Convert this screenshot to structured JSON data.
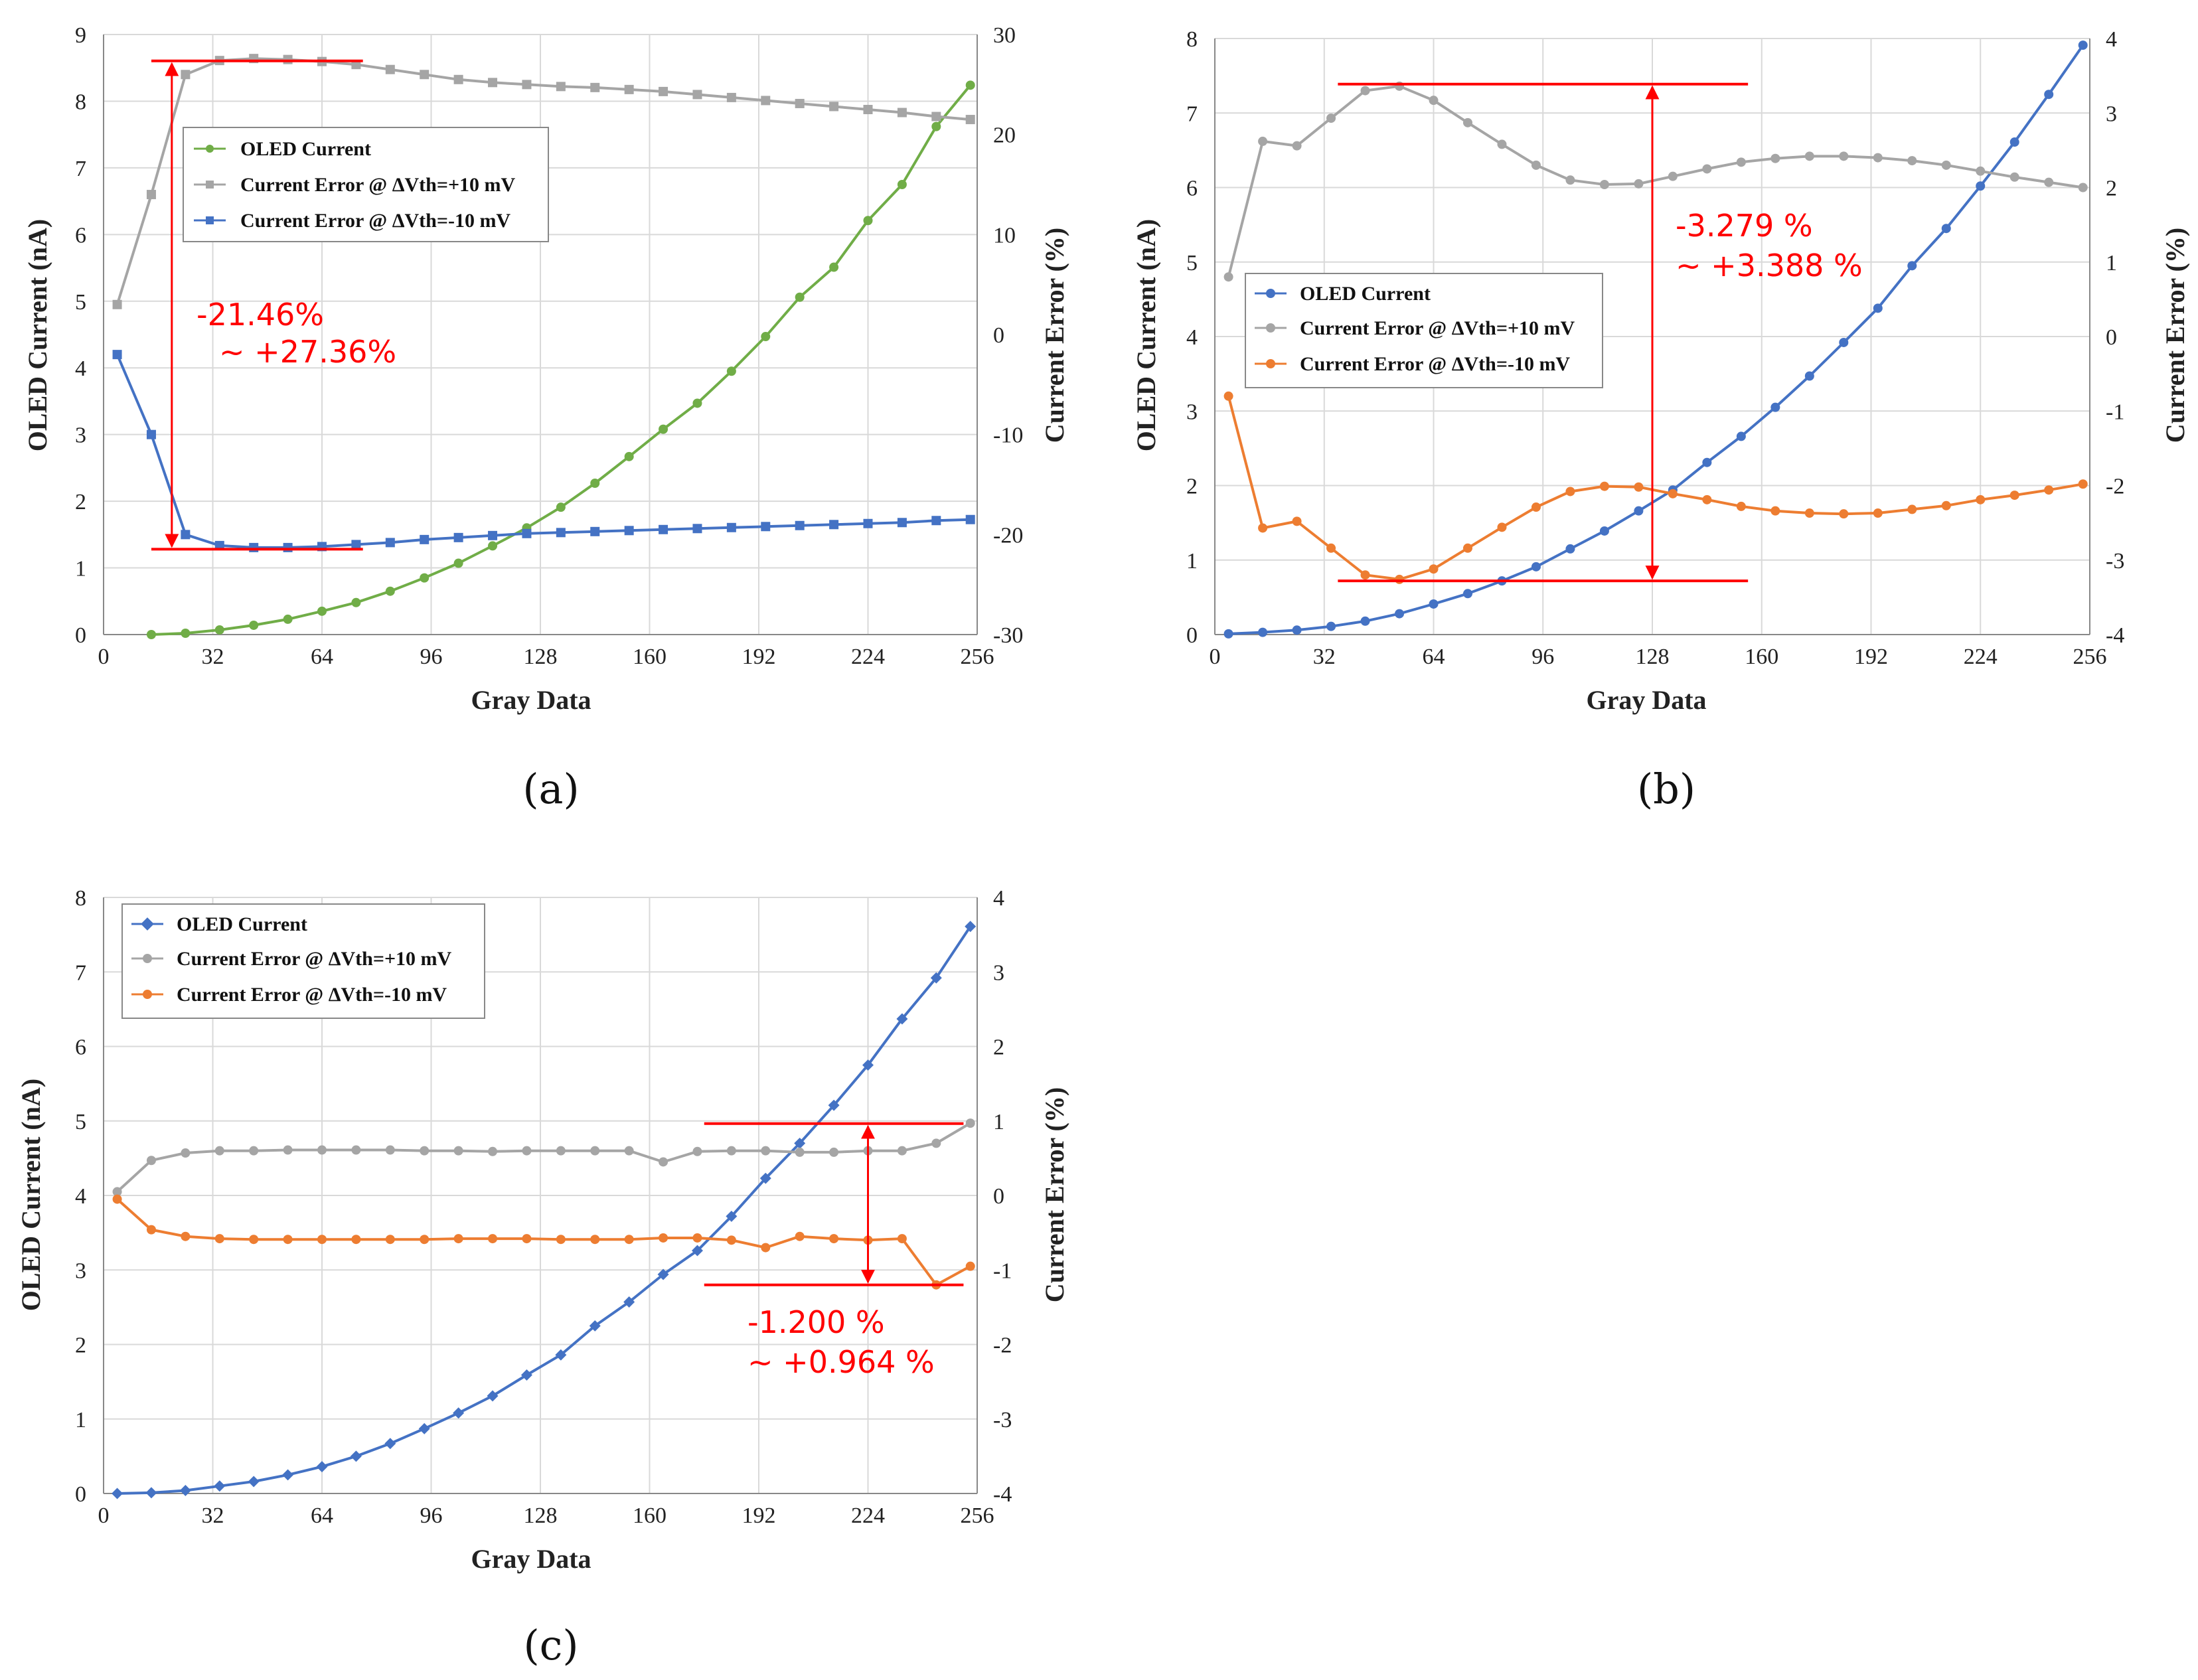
{
  "colors": {
    "green": "#70ad47",
    "gray": "#a5a5a5",
    "blue": "#4472c4",
    "orange": "#ed7d31",
    "red": "#ff0000",
    "grid": "#d9d9d9",
    "axis": "#888888"
  },
  "chart_data": [
    {
      "id": "a",
      "caption": "(a)",
      "type": "line",
      "xlabel": "Gray Data",
      "ylabel_left": "OLED Current (nA)",
      "ylabel_right": "Current Error (%)",
      "xticks": [
        0,
        32,
        64,
        96,
        128,
        160,
        192,
        224,
        256
      ],
      "xlim": [
        0,
        256
      ],
      "ylim_left": [
        0,
        9
      ],
      "yticks_left": [
        0,
        1,
        2,
        3,
        4,
        5,
        6,
        7,
        8,
        9
      ],
      "ylim_right": [
        -30,
        30
      ],
      "yticks_right": [
        -30,
        -20,
        -10,
        0,
        10,
        20,
        30
      ],
      "legend_position": "top-left",
      "legend": [
        "OLED Current",
        "Current Error @ ΔVth=+10 mV",
        "Current Error @ ΔVth=-10 mV"
      ],
      "annotation": {
        "line1": "-21.46%",
        "line2": "~ +27.36%"
      },
      "bracket": {
        "top": 27.36,
        "bottom": -21.46,
        "x_from": 14,
        "x_to": 76,
        "x_arrow": 20,
        "axis": "right"
      },
      "series": [
        {
          "name": "OLED Current",
          "axis": "left",
          "color": "green",
          "marker": "circle",
          "x": [
            14,
            24,
            34,
            44,
            54,
            64,
            74,
            84,
            94,
            104,
            114,
            124,
            134,
            144,
            154,
            164,
            174,
            184,
            194,
            204,
            214,
            224,
            234,
            244,
            254
          ],
          "values": [
            0,
            0.02,
            0.07,
            0.14,
            0.23,
            0.35,
            0.48,
            0.65,
            0.85,
            1.07,
            1.33,
            1.6,
            1.91,
            2.27,
            2.67,
            3.08,
            3.47,
            3.95,
            4.47,
            5.06,
            5.51,
            6.21,
            6.75,
            7.62,
            8.24
          ]
        },
        {
          "name": "Current Error @ ΔVth=+10 mV",
          "axis": "right",
          "color": "gray",
          "marker": "square",
          "x": [
            4,
            14,
            24,
            34,
            44,
            54,
            64,
            74,
            84,
            94,
            104,
            114,
            124,
            134,
            144,
            154,
            164,
            174,
            184,
            194,
            204,
            214,
            224,
            234,
            244,
            254
          ],
          "values": [
            3.0,
            14.0,
            26.0,
            27.4,
            27.6,
            27.5,
            27.3,
            27.0,
            26.5,
            26.0,
            25.5,
            25.2,
            25.0,
            24.8,
            24.7,
            24.5,
            24.3,
            24.0,
            23.7,
            23.4,
            23.1,
            22.8,
            22.5,
            22.2,
            21.8,
            21.5
          ]
        },
        {
          "name": "Current Error @ ΔVth=-10 mV",
          "axis": "right",
          "color": "blue",
          "marker": "square",
          "x": [
            4,
            14,
            24,
            34,
            44,
            54,
            64,
            74,
            84,
            94,
            104,
            114,
            124,
            134,
            144,
            154,
            164,
            174,
            184,
            194,
            204,
            214,
            224,
            234,
            244,
            254
          ],
          "values": [
            -2.0,
            -10.0,
            -20.0,
            -21.1,
            -21.3,
            -21.3,
            -21.2,
            -21.0,
            -20.8,
            -20.5,
            -20.3,
            -20.1,
            -19.9,
            -19.8,
            -19.7,
            -19.6,
            -19.5,
            -19.4,
            -19.3,
            -19.2,
            -19.1,
            -19.0,
            -18.9,
            -18.8,
            -18.6,
            -18.5
          ]
        }
      ]
    },
    {
      "id": "b",
      "caption": "(b)",
      "type": "line",
      "xlabel": "Gray Data",
      "ylabel_left": "OLED Current (nA)",
      "ylabel_right": "Current Error (%)",
      "xticks": [
        0,
        32,
        64,
        96,
        128,
        160,
        192,
        224,
        256
      ],
      "xlim": [
        0,
        256
      ],
      "ylim_left": [
        0,
        8
      ],
      "yticks_left": [
        0,
        1,
        2,
        3,
        4,
        5,
        6,
        7,
        8
      ],
      "ylim_right": [
        -4,
        4
      ],
      "yticks_right": [
        -4,
        -3,
        -2,
        -1,
        0,
        1,
        2,
        3,
        4
      ],
      "legend_position": "center-left",
      "legend": [
        "OLED Current",
        "Current Error @ ΔVth=+10 mV",
        "Current Error @ ΔVth=-10 mV"
      ],
      "annotation": {
        "line1": "-3.279 %",
        "line2": "~ +3.388 %"
      },
      "bracket": {
        "top": 3.388,
        "bottom": -3.279,
        "x_from": 36,
        "x_to": 156,
        "x_arrow": 128,
        "axis": "right"
      },
      "series": [
        {
          "name": "OLED Current",
          "axis": "left",
          "color": "blue",
          "marker": "circle",
          "x": [
            4,
            14,
            24,
            34,
            44,
            54,
            64,
            74,
            84,
            94,
            104,
            114,
            124,
            134,
            144,
            154,
            164,
            174,
            184,
            194,
            204,
            214,
            224,
            234,
            244,
            254
          ],
          "values": [
            0.01,
            0.03,
            0.06,
            0.11,
            0.18,
            0.28,
            0.41,
            0.55,
            0.72,
            0.91,
            1.15,
            1.39,
            1.66,
            1.94,
            2.31,
            2.66,
            3.05,
            3.47,
            3.92,
            4.38,
            4.95,
            5.45,
            6.02,
            6.61,
            7.25,
            7.91
          ]
        },
        {
          "name": "Current Error @ ΔVth=+10 mV",
          "axis": "right",
          "color": "gray",
          "marker": "circle",
          "x": [
            4,
            14,
            24,
            34,
            44,
            54,
            64,
            74,
            84,
            94,
            104,
            114,
            124,
            134,
            144,
            154,
            164,
            174,
            184,
            194,
            204,
            214,
            224,
            234,
            244,
            254
          ],
          "values": [
            0.8,
            2.62,
            2.56,
            2.93,
            3.3,
            3.36,
            3.17,
            2.87,
            2.58,
            2.3,
            2.1,
            2.04,
            2.05,
            2.15,
            2.25,
            2.34,
            2.39,
            2.42,
            2.42,
            2.4,
            2.36,
            2.3,
            2.22,
            2.14,
            2.07,
            2.0
          ]
        },
        {
          "name": "Current Error @ ΔVth=-10 mV",
          "axis": "right",
          "color": "orange",
          "marker": "circle",
          "x": [
            4,
            14,
            24,
            34,
            44,
            54,
            64,
            74,
            84,
            94,
            104,
            114,
            124,
            134,
            144,
            154,
            164,
            174,
            184,
            194,
            204,
            214,
            224,
            234,
            244,
            254
          ],
          "values": [
            -0.8,
            -2.57,
            -2.48,
            -2.84,
            -3.2,
            -3.26,
            -3.12,
            -2.84,
            -2.56,
            -2.29,
            -2.08,
            -2.01,
            -2.02,
            -2.11,
            -2.19,
            -2.28,
            -2.34,
            -2.37,
            -2.38,
            -2.37,
            -2.32,
            -2.27,
            -2.19,
            -2.13,
            -2.06,
            -1.98
          ]
        }
      ]
    },
    {
      "id": "c",
      "caption": "(c)",
      "type": "line",
      "xlabel": "Gray Data",
      "ylabel_left": "OLED Current (nA)",
      "ylabel_right": "Current Error (%)",
      "xticks": [
        0,
        32,
        64,
        96,
        128,
        160,
        192,
        224,
        256
      ],
      "xlim": [
        0,
        256
      ],
      "ylim_left": [
        0,
        8
      ],
      "yticks_left": [
        0,
        1,
        2,
        3,
        4,
        5,
        6,
        7,
        8
      ],
      "ylim_right": [
        -4,
        4
      ],
      "yticks_right": [
        -4,
        -3,
        -2,
        -1,
        0,
        1,
        2,
        3,
        4
      ],
      "legend_position": "top-left",
      "legend": [
        "OLED Current",
        "Current Error @ ΔVth=+10 mV",
        "Current Error @ ΔVth=-10 mV"
      ],
      "annotation": {
        "line1": "-1.200 %",
        "line2": "~ +0.964 %"
      },
      "bracket": {
        "top": 0.964,
        "bottom": -1.2,
        "x_from": 176,
        "x_to": 252,
        "x_arrow": 224,
        "axis": "right"
      },
      "series": [
        {
          "name": "OLED Current",
          "axis": "left",
          "color": "blue",
          "marker": "diamond",
          "x": [
            4,
            14,
            24,
            34,
            44,
            54,
            64,
            74,
            84,
            94,
            104,
            114,
            124,
            134,
            144,
            154,
            164,
            174,
            184,
            194,
            204,
            214,
            224,
            234,
            244,
            254
          ],
          "values": [
            0.0,
            0.01,
            0.04,
            0.1,
            0.16,
            0.25,
            0.36,
            0.5,
            0.67,
            0.87,
            1.08,
            1.31,
            1.59,
            1.86,
            2.25,
            2.57,
            2.94,
            3.26,
            3.72,
            4.23,
            4.7,
            5.21,
            5.75,
            6.37,
            6.92,
            7.61
          ]
        },
        {
          "name": "Current Error @ ΔVth=+10 mV",
          "axis": "right",
          "color": "gray",
          "marker": "circle",
          "x": [
            4,
            14,
            24,
            34,
            44,
            54,
            64,
            74,
            84,
            94,
            104,
            114,
            124,
            134,
            144,
            154,
            164,
            174,
            184,
            194,
            204,
            214,
            224,
            234,
            244,
            254
          ],
          "values": [
            0.05,
            0.47,
            0.57,
            0.6,
            0.6,
            0.61,
            0.61,
            0.61,
            0.61,
            0.6,
            0.6,
            0.59,
            0.6,
            0.6,
            0.6,
            0.6,
            0.45,
            0.59,
            0.6,
            0.6,
            0.58,
            0.58,
            0.6,
            0.6,
            0.7,
            0.97
          ]
        },
        {
          "name": "Current Error @ ΔVth=-10 mV",
          "axis": "right",
          "color": "orange",
          "marker": "circle",
          "x": [
            4,
            14,
            24,
            34,
            44,
            54,
            64,
            74,
            84,
            94,
            104,
            114,
            124,
            134,
            144,
            154,
            164,
            174,
            184,
            194,
            204,
            214,
            224,
            234,
            244,
            254
          ],
          "values": [
            -0.05,
            -0.46,
            -0.55,
            -0.58,
            -0.59,
            -0.59,
            -0.59,
            -0.59,
            -0.59,
            -0.59,
            -0.58,
            -0.58,
            -0.58,
            -0.59,
            -0.59,
            -0.59,
            -0.57,
            -0.57,
            -0.6,
            -0.7,
            -0.55,
            -0.58,
            -0.6,
            -0.58,
            -1.2,
            -0.95
          ]
        }
      ]
    }
  ]
}
